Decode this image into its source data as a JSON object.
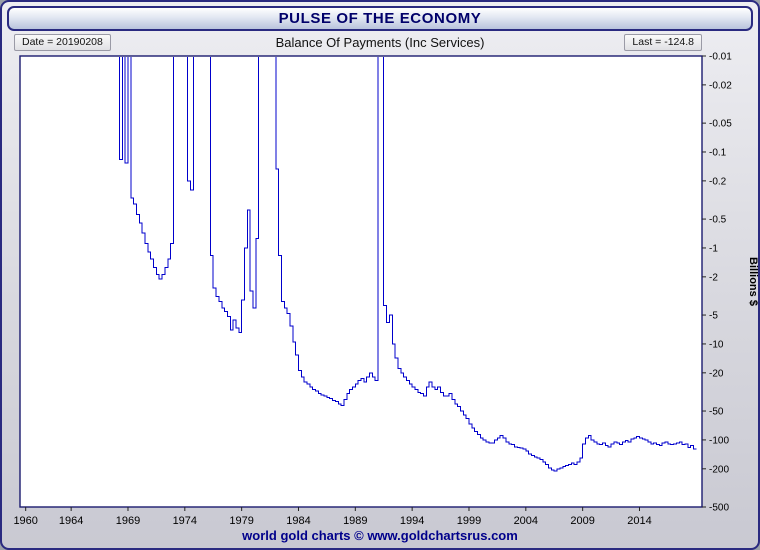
{
  "header": {
    "title": "PULSE OF THE ECONOMY"
  },
  "subheader": {
    "date_label": "Date = 20190208",
    "chart_title": "Balance Of Payments (Inc Services)",
    "last_label": "Last = -124.8"
  },
  "footer": {
    "credit": "world gold charts © www.goldchartsrus.com"
  },
  "colors": {
    "line": "#0000CC",
    "navy": "#00008B",
    "plot_border": "#1b1b6f",
    "plot_background": "#ffffff"
  },
  "chart_data": {
    "type": "line",
    "title": "Balance Of Payments (Inc Services)",
    "ylabel": "Billions $",
    "xlabel": "",
    "y_scale": "negative-log",
    "y_ticks": [
      -0.01,
      -0.02,
      -0.05,
      -0.1,
      -0.2,
      -0.5,
      -1,
      -2,
      -5,
      -10,
      -20,
      -50,
      -100,
      -200,
      -500
    ],
    "x_ticks": [
      1960,
      1964,
      1969,
      1974,
      1979,
      1984,
      1989,
      1994,
      1999,
      2004,
      2009,
      2014
    ],
    "x_range": [
      1959.5,
      2019.5
    ],
    "last_value": -124.8,
    "as_of_date": "20190208",
    "note": "US balance of payments (incl. services), quarterly, billions $. Positive (surplus) quarters plot off-scale above the -0.01 top of the inverted log axis.",
    "quarterly": [
      {
        "year": 1960,
        "values": [
          1.0,
          1.2,
          1.1,
          1.3
        ]
      },
      {
        "year": 1961,
        "values": [
          1.2,
          1.0,
          1.1,
          1.2
        ]
      },
      {
        "year": 1962,
        "values": [
          0.9,
          1.0,
          0.8,
          0.9
        ]
      },
      {
        "year": 1963,
        "values": [
          1.0,
          1.1,
          1.2,
          1.3
        ]
      },
      {
        "year": 1964,
        "values": [
          1.5,
          1.6,
          1.7,
          1.5
        ]
      },
      {
        "year": 1965,
        "values": [
          1.4,
          1.3,
          1.2,
          1.0
        ]
      },
      {
        "year": 1966,
        "values": [
          0.8,
          0.6,
          0.5,
          0.6
        ]
      },
      {
        "year": 1967,
        "values": [
          0.8,
          0.7,
          0.5,
          0.3
        ]
      },
      {
        "year": 1968,
        "values": [
          0.1,
          -0.12,
          0.2,
          -0.13
        ]
      },
      {
        "year": 1969,
        "values": [
          0.1,
          -0.3,
          -0.35,
          -0.45
        ]
      },
      {
        "year": 1970,
        "values": [
          -0.55,
          -0.7,
          -0.9,
          -1.1
        ]
      },
      {
        "year": 1971,
        "values": [
          -1.3,
          -1.6,
          -1.9,
          -2.1
        ]
      },
      {
        "year": 1972,
        "values": [
          -1.9,
          -1.6,
          -1.3,
          -0.9
        ]
      },
      {
        "year": 1973,
        "values": [
          0.5,
          1.0,
          1.5,
          1.0
        ]
      },
      {
        "year": 1974,
        "values": [
          0.3,
          -0.2,
          -0.25,
          0.4
        ]
      },
      {
        "year": 1975,
        "values": [
          1.5,
          2.0,
          1.5,
          0.8
        ]
      },
      {
        "year": 1976,
        "values": [
          0.3,
          -1.2,
          -2.6,
          -3.2
        ]
      },
      {
        "year": 1977,
        "values": [
          -3.6,
          -4.2,
          -4.6,
          -5.2
        ]
      },
      {
        "year": 1978,
        "values": [
          -7.2,
          -5.6,
          -6.8,
          -7.6
        ]
      },
      {
        "year": 1979,
        "values": [
          -3.5,
          -1.0,
          -0.4,
          -2.8
        ]
      },
      {
        "year": 1980,
        "values": [
          -4.2,
          -0.8,
          0.6,
          1.2
        ]
      },
      {
        "year": 1981,
        "values": [
          1.5,
          1.2,
          0.8,
          1.0
        ]
      },
      {
        "year": 1982,
        "values": [
          -0.15,
          -1.2,
          -3.6,
          -4.2
        ]
      },
      {
        "year": 1983,
        "values": [
          -4.8,
          -6.5,
          -9.5,
          -13
        ]
      },
      {
        "year": 1984,
        "values": [
          -19,
          -22,
          -25,
          -26
        ]
      },
      {
        "year": 1985,
        "values": [
          -28,
          -30,
          -31,
          -33
        ]
      },
      {
        "year": 1986,
        "values": [
          -34,
          -35,
          -36,
          -37
        ]
      },
      {
        "year": 1987,
        "values": [
          -39,
          -40,
          -42,
          -44
        ]
      },
      {
        "year": 1988,
        "values": [
          -38,
          -33,
          -30,
          -28
        ]
      },
      {
        "year": 1989,
        "values": [
          -26,
          -24,
          -23,
          -25
        ]
      },
      {
        "year": 1990,
        "values": [
          -22,
          -20,
          -22,
          -24
        ]
      },
      {
        "year": 1991,
        "values": [
          10,
          1.5,
          -4,
          -6
        ]
      },
      {
        "year": 1992,
        "values": [
          -5,
          -10,
          -14,
          -18
        ]
      },
      {
        "year": 1993,
        "values": [
          -20,
          -22,
          -24,
          -26
        ]
      },
      {
        "year": 1994,
        "values": [
          -28,
          -30,
          -32,
          -33
        ]
      },
      {
        "year": 1995,
        "values": [
          -35,
          -28,
          -25,
          -28
        ]
      },
      {
        "year": 1996,
        "values": [
          -30,
          -28,
          -32,
          -35
        ]
      },
      {
        "year": 1997,
        "values": [
          -35,
          -33,
          -38,
          -42
        ]
      },
      {
        "year": 1998,
        "values": [
          -45,
          -50,
          -55,
          -60
        ]
      },
      {
        "year": 1999,
        "values": [
          -68,
          -75,
          -82,
          -88
        ]
      },
      {
        "year": 2000,
        "values": [
          -95,
          -100,
          -105,
          -108
        ]
      },
      {
        "year": 2001,
        "values": [
          -108,
          -100,
          -95,
          -90
        ]
      },
      {
        "year": 2002,
        "values": [
          -95,
          -105,
          -110,
          -112
        ]
      },
      {
        "year": 2003,
        "values": [
          -118,
          -120,
          -122,
          -125
        ]
      },
      {
        "year": 2004,
        "values": [
          -130,
          -140,
          -145,
          -150
        ]
      },
      {
        "year": 2005,
        "values": [
          -155,
          -160,
          -170,
          -180
        ]
      },
      {
        "year": 2006,
        "values": [
          -195,
          -205,
          -210,
          -200
        ]
      },
      {
        "year": 2007,
        "values": [
          -195,
          -190,
          -185,
          -180
        ]
      },
      {
        "year": 2008,
        "values": [
          -175,
          -180,
          -170,
          -155
        ]
      },
      {
        "year": 2009,
        "values": [
          -110,
          -95,
          -90,
          -100
        ]
      },
      {
        "year": 2010,
        "values": [
          -105,
          -110,
          -112,
          -108
        ]
      },
      {
        "year": 2011,
        "values": [
          -115,
          -118,
          -110,
          -105
        ]
      },
      {
        "year": 2012,
        "values": [
          -108,
          -112,
          -105,
          -102
        ]
      },
      {
        "year": 2013,
        "values": [
          -105,
          -98,
          -95,
          -92
        ]
      },
      {
        "year": 2014,
        "values": [
          -95,
          -98,
          -100,
          -105
        ]
      },
      {
        "year": 2015,
        "values": [
          -110,
          -108,
          -112,
          -115
        ]
      },
      {
        "year": 2016,
        "values": [
          -108,
          -105,
          -110,
          -112
        ]
      },
      {
        "year": 2017,
        "values": [
          -110,
          -108,
          -105,
          -112
        ]
      },
      {
        "year": 2018,
        "values": [
          -110,
          -120,
          -115,
          -124.8
        ]
      }
    ]
  }
}
